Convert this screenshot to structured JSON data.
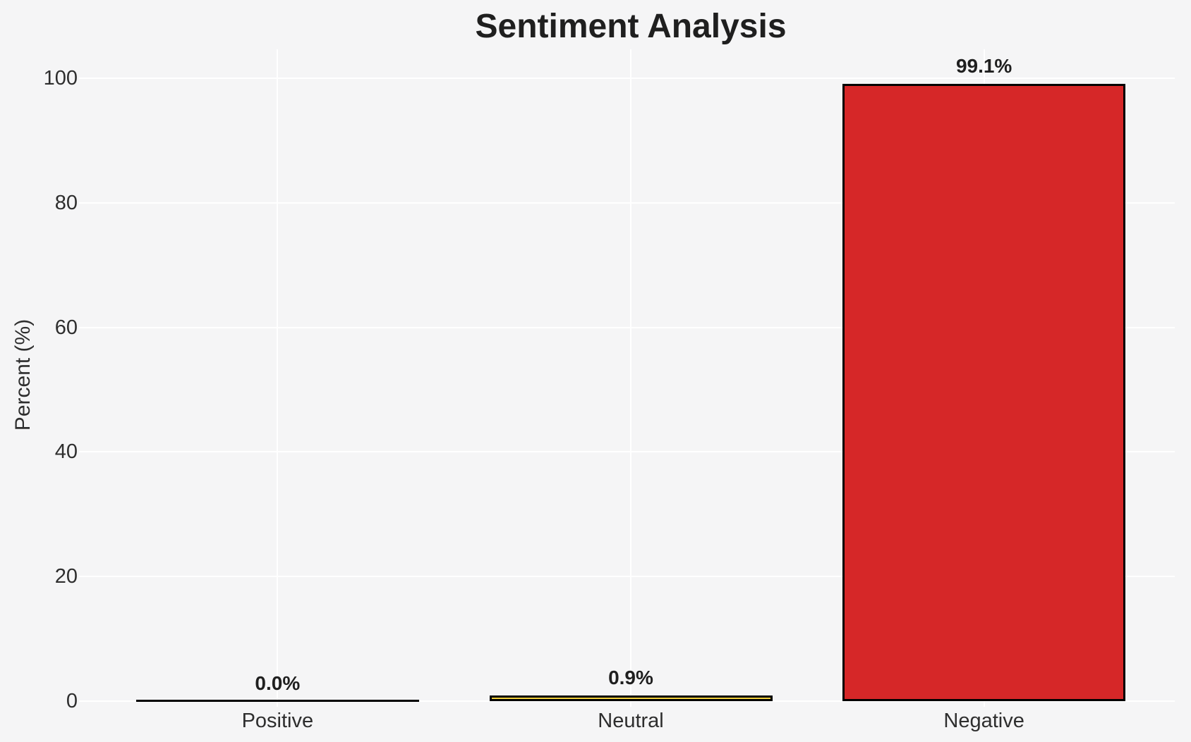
{
  "chart_data": {
    "type": "bar",
    "title": "Sentiment Analysis",
    "xlabel": "",
    "ylabel": "Percent (%)",
    "categories": [
      "Positive",
      "Neutral",
      "Negative"
    ],
    "values": [
      0.0,
      0.9,
      99.1
    ],
    "value_labels": [
      "0.0%",
      "0.9%",
      "99.1%"
    ],
    "bar_colors": [
      null,
      "#F2D03C",
      "#D62728"
    ],
    "bar_edge_color": "#000000",
    "yticks": [
      0,
      20,
      40,
      60,
      80,
      100
    ],
    "ylim": [
      0,
      104.5
    ],
    "grid": true,
    "legend": "none",
    "colors": {
      "background": "#F5F5F6",
      "grid": "#FFFFFF",
      "text": "#2E2E2E",
      "bold_text": "#1F1F1F"
    }
  }
}
